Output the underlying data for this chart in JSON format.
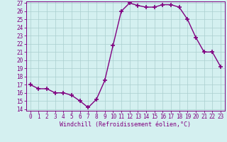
{
  "hours": [
    0,
    1,
    2,
    3,
    4,
    5,
    6,
    7,
    8,
    9,
    10,
    11,
    12,
    13,
    14,
    15,
    16,
    17,
    18,
    19,
    20,
    21,
    22,
    23
  ],
  "values": [
    17,
    16.5,
    16.5,
    16,
    16,
    15.7,
    15,
    14.2,
    15.2,
    17.5,
    21.8,
    26,
    27,
    26.7,
    26.5,
    26.5,
    26.8,
    26.8,
    26.5,
    25,
    22.8,
    21,
    21,
    19.2
  ],
  "xlabel": "Windchill (Refroidissement éolien,°C)",
  "ylim": [
    14,
    27
  ],
  "xlim": [
    -0.5,
    23.5
  ],
  "yticks": [
    14,
    15,
    16,
    17,
    18,
    19,
    20,
    21,
    22,
    23,
    24,
    25,
    26,
    27
  ],
  "xticks": [
    0,
    1,
    2,
    3,
    4,
    5,
    6,
    7,
    8,
    9,
    10,
    11,
    12,
    13,
    14,
    15,
    16,
    17,
    18,
    19,
    20,
    21,
    22,
    23
  ],
  "line_color": "#800080",
  "marker": "+",
  "bg_color": "#d4f0f0",
  "grid_color": "#aacece",
  "tick_label_fontsize": 5.5,
  "xlabel_fontsize": 6.0,
  "marker_size": 4,
  "line_width": 1.0
}
